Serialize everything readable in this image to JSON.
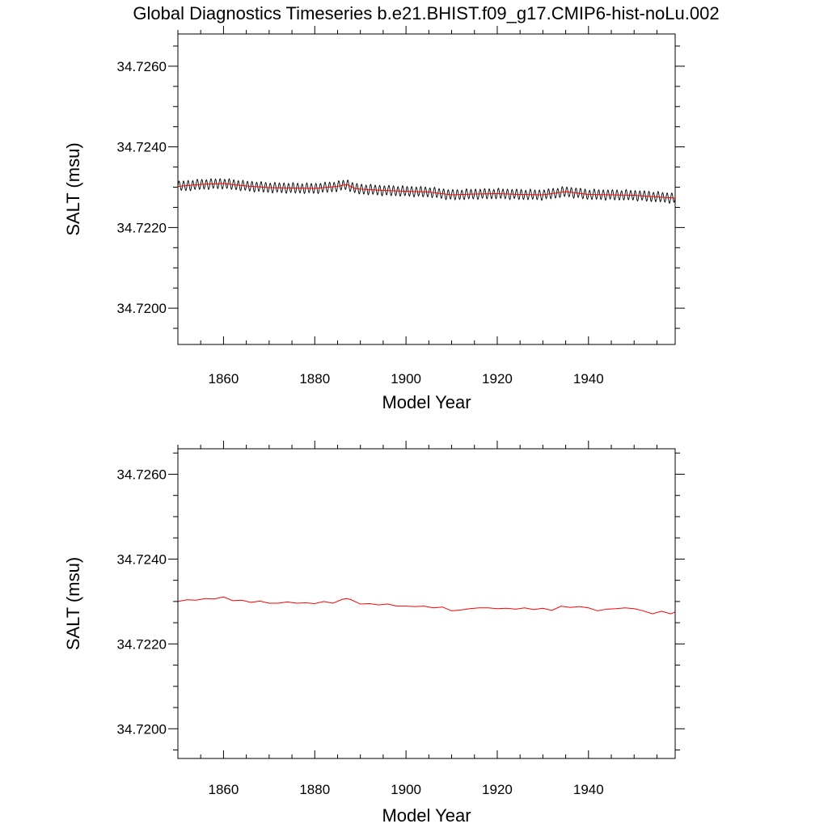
{
  "title": "Global Diagnostics Timeseries b.e21.BHIST.f09_g17.CMIP6-hist-noLu.002",
  "colors": {
    "monthly": "#000000",
    "annual": "#ff0000",
    "frame": "#000000"
  },
  "chart_data": [
    {
      "type": "line",
      "xlabel": "Model Year",
      "ylabel": "SALT (msu)",
      "xlim": [
        1850,
        1959
      ],
      "ylim": [
        34.7191,
        34.7268
      ],
      "x_ticks": [
        "1860",
        "1880",
        "1900",
        "1920",
        "1940"
      ],
      "y_ticks": [
        "34.7200",
        "34.7220",
        "34.7240",
        "34.7260"
      ],
      "series": [
        {
          "role": "monthly",
          "color": "#000000",
          "x_range": [
            1850,
            1959
          ],
          "seasonal_amplitude": 0.00012,
          "annual_mean": {
            "x": [
              1850,
              1855,
              1860,
              1865,
              1870,
              1875,
              1880,
              1885,
              1887,
              1889,
              1895,
              1900,
              1905,
              1910,
              1915,
              1920,
              1925,
              1930,
              1935,
              1940,
              1945,
              1950,
              1955,
              1959
            ],
            "y": [
              34.72302,
              34.72307,
              34.72309,
              34.72303,
              34.72299,
              34.72298,
              34.72297,
              34.72302,
              34.72307,
              34.72296,
              34.72292,
              34.7229,
              34.72288,
              34.72281,
              34.72283,
              34.72284,
              34.72282,
              34.72281,
              34.72289,
              34.72282,
              34.72281,
              34.7228,
              34.72276,
              34.72273
            ]
          }
        },
        {
          "role": "annual",
          "color": "#ff0000",
          "x": [
            1850,
            1855,
            1860,
            1865,
            1870,
            1875,
            1880,
            1885,
            1887,
            1889,
            1895,
            1900,
            1905,
            1910,
            1915,
            1920,
            1925,
            1930,
            1935,
            1940,
            1945,
            1950,
            1955,
            1959
          ],
          "y": [
            34.72302,
            34.72307,
            34.72309,
            34.72303,
            34.72299,
            34.72298,
            34.72297,
            34.72302,
            34.72307,
            34.72296,
            34.72292,
            34.7229,
            34.72288,
            34.72281,
            34.72283,
            34.72284,
            34.72282,
            34.72281,
            34.72289,
            34.72282,
            34.72281,
            34.7228,
            34.72276,
            34.72273
          ]
        }
      ]
    },
    {
      "type": "line",
      "xlabel": "Model Year",
      "ylabel": "SALT (msu)",
      "xlim": [
        1850,
        1959
      ],
      "ylim": [
        34.7193,
        34.7266
      ],
      "x_ticks": [
        "1860",
        "1880",
        "1900",
        "1920",
        "1940"
      ],
      "y_ticks": [
        "34.7200",
        "34.7220",
        "34.7240",
        "34.7260"
      ],
      "series": [
        {
          "role": "annual",
          "color": "#ff0000",
          "x": [
            1850,
            1852,
            1854,
            1856,
            1858,
            1860,
            1862,
            1864,
            1866,
            1868,
            1870,
            1872,
            1874,
            1876,
            1878,
            1880,
            1882,
            1884,
            1886,
            1887,
            1888,
            1890,
            1892,
            1894,
            1896,
            1898,
            1900,
            1902,
            1904,
            1906,
            1908,
            1910,
            1912,
            1914,
            1916,
            1918,
            1920,
            1922,
            1924,
            1926,
            1928,
            1930,
            1932,
            1934,
            1936,
            1938,
            1940,
            1942,
            1944,
            1946,
            1948,
            1950,
            1952,
            1954,
            1956,
            1958,
            1959
          ],
          "y": [
            34.723,
            34.72304,
            34.72303,
            34.72307,
            34.72306,
            34.72311,
            34.72302,
            34.72303,
            34.72298,
            34.72301,
            34.72296,
            34.72296,
            34.72299,
            34.72296,
            34.72297,
            34.72295,
            34.723,
            34.72296,
            34.72305,
            34.72307,
            34.72304,
            34.72294,
            34.72295,
            34.72292,
            34.72294,
            34.72289,
            34.72289,
            34.72288,
            34.72289,
            34.72285,
            34.72287,
            34.72278,
            34.7228,
            34.72283,
            34.72285,
            34.72285,
            34.72283,
            34.72284,
            34.72282,
            34.72285,
            34.72281,
            34.72284,
            34.72279,
            34.72289,
            34.72286,
            34.72288,
            34.72285,
            34.72278,
            34.72282,
            34.72283,
            34.72285,
            34.72283,
            34.72278,
            34.72271,
            34.72277,
            34.72271,
            34.72275
          ]
        }
      ]
    }
  ]
}
